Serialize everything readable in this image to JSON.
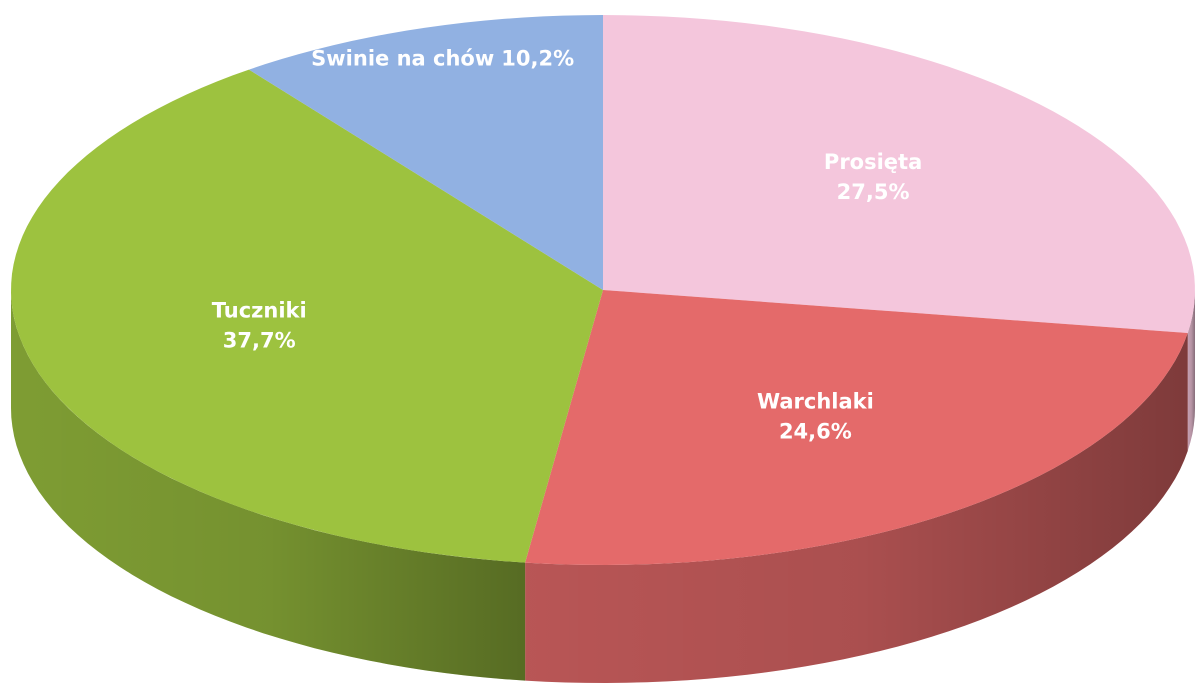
{
  "chart_data": {
    "type": "pie",
    "categories": [
      "Prosięta",
      "Warchlaki",
      "Tuczniki",
      "Świnie na chów"
    ],
    "values": [
      27.5,
      24.6,
      37.7,
      10.2
    ],
    "value_labels": [
      "27,5%",
      "24,6%",
      "37,7%",
      "10,2%"
    ],
    "colors": [
      "#f4c6dc",
      "#e46a6a",
      "#9dc23f",
      "#91b1e2"
    ]
  }
}
